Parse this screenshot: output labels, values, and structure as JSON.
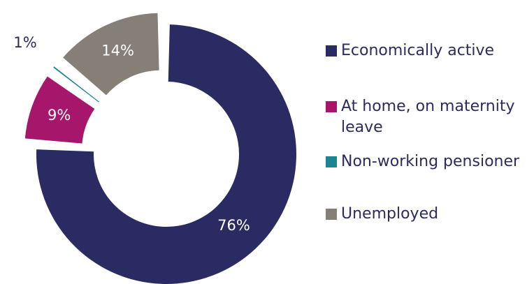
{
  "chart_data": {
    "type": "pie",
    "title": "",
    "unit": "%",
    "slices": [
      {
        "label": "Economically active",
        "value": 76,
        "display": "76%",
        "color": "#2b2b63"
      },
      {
        "label": "At home, on maternity leave",
        "value": 9,
        "display": "9%",
        "color": "#a6176b"
      },
      {
        "label": "Non-working pensioner",
        "value": 1,
        "display": "1%",
        "color": "#1b8590"
      },
      {
        "label": "Unemployed",
        "value": 14,
        "display": "14%",
        "color": "#857f78"
      }
    ],
    "legend_position": "right"
  }
}
